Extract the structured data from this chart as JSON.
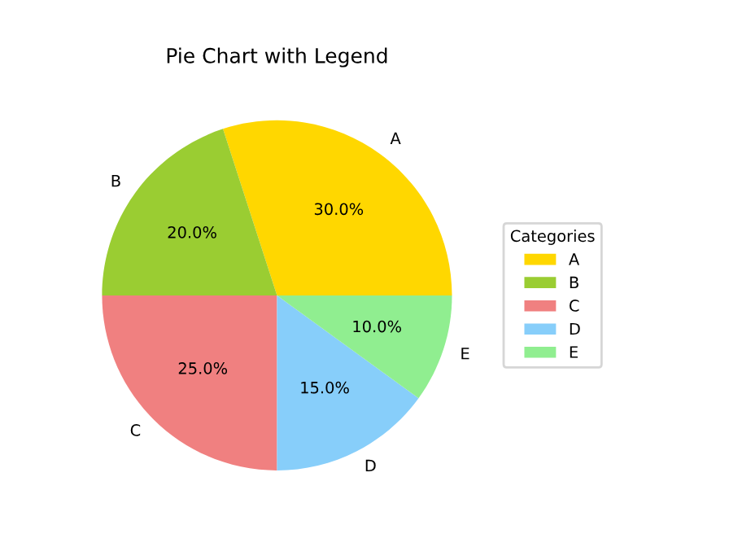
{
  "chart_data": {
    "type": "pie",
    "title": "Pie Chart with Legend",
    "legend_title": "Categories",
    "categories": [
      "A",
      "B",
      "C",
      "D",
      "E"
    ],
    "values": [
      30,
      20,
      25,
      15,
      10
    ],
    "colors": [
      "#ffd700",
      "#9acd32",
      "#f08080",
      "#87cefa",
      "#90ee90"
    ],
    "value_labels": [
      "30.0%",
      "20.0%",
      "25.0%",
      "15.0%",
      "10.0%"
    ],
    "legend": "right"
  }
}
